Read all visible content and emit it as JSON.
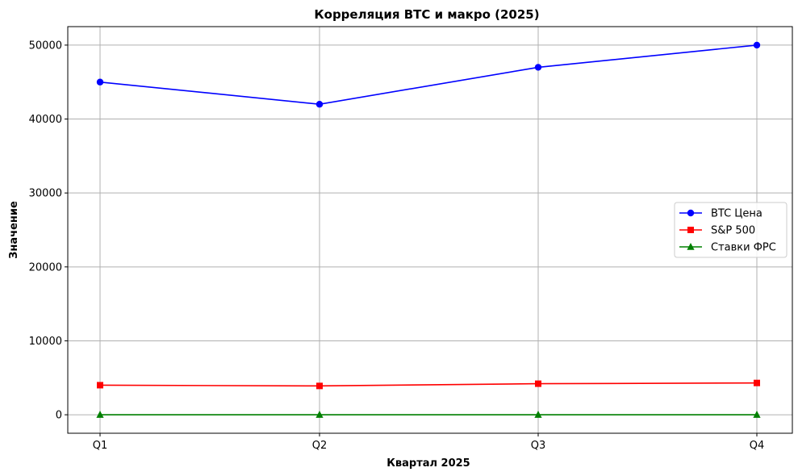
{
  "chart_data": {
    "type": "line",
    "title": "Корреляция BTC и макро (2025)",
    "xlabel": "Квартал 2025",
    "ylabel": "Значение",
    "categories": [
      "Q1",
      "Q2",
      "Q3",
      "Q4"
    ],
    "ylim": [
      -2500,
      52500
    ],
    "yticks": [
      0,
      10000,
      20000,
      30000,
      40000,
      50000
    ],
    "grid": true,
    "legend_position": "center-right",
    "series": [
      {
        "name": "BTC Цена",
        "values": [
          45000,
          42000,
          47000,
          50000
        ],
        "color": "#0000ff",
        "marker": "circle"
      },
      {
        "name": "S&P 500",
        "values": [
          4000,
          3900,
          4200,
          4300
        ],
        "color": "#ff0000",
        "marker": "square"
      },
      {
        "name": "Ставки ФРС",
        "values": [
          5.25,
          5.0,
          4.75,
          4.5
        ],
        "color": "#008000",
        "marker": "triangle"
      }
    ]
  }
}
